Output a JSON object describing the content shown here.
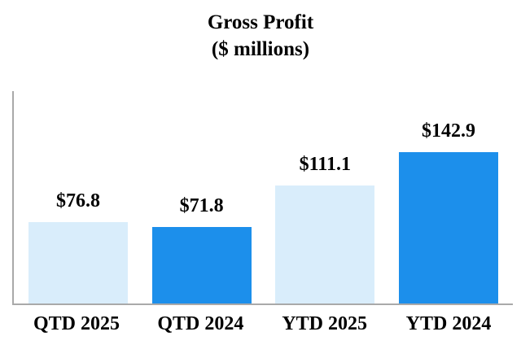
{
  "title": {
    "line1": "Gross Profit",
    "line2": "($ millions)"
  },
  "colors": {
    "light_bar": "#d9edfb",
    "dark_bar": "#1c8feb",
    "axis": "#a9a9a9",
    "text": "#000000"
  },
  "chart_data": {
    "type": "bar",
    "title": "Gross Profit ($ millions)",
    "categories": [
      "QTD 2025",
      "QTD 2024",
      "YTD 2025",
      "YTD 2024"
    ],
    "values": [
      76.8,
      71.8,
      111.1,
      142.9
    ],
    "data_labels": [
      "$76.8",
      "$71.8",
      "$111.1",
      "$142.9"
    ],
    "bar_color_pattern": [
      "light",
      "dark",
      "light",
      "dark"
    ],
    "xlabel": "",
    "ylabel": "",
    "ylim": [
      0,
      200
    ],
    "grid": false,
    "legend": false,
    "data_labels_position": "above-bars",
    "axis_lines": [
      "left",
      "bottom"
    ]
  }
}
